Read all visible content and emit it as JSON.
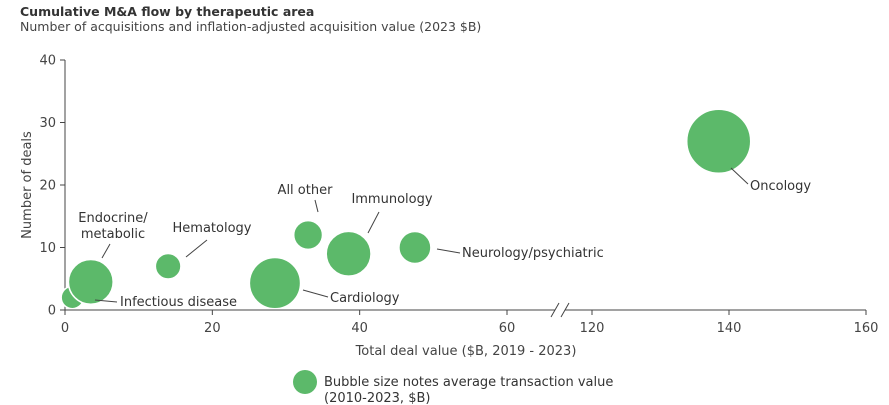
{
  "chart_data": {
    "type": "bubble",
    "title": "Cumulative M&A flow by therapeutic area",
    "subtitle": "Number of acquisitions and inflation-adjusted acquisition value (2023 $B)",
    "xlabel": "Total deal value ($B, 2019 - 2023)",
    "ylabel": "Number of deals",
    "x_axis": {
      "broken": true,
      "segments": [
        {
          "range": [
            0,
            70
          ],
          "ticks": [
            0,
            20,
            40,
            60
          ]
        },
        {
          "range": [
            110,
            160
          ],
          "ticks": [
            120,
            140,
            160
          ]
        }
      ]
    },
    "ylim": [
      0,
      40
    ],
    "yticks": [
      0,
      10,
      20,
      30,
      40
    ],
    "grid": false,
    "bubble_color": "#5cb96a",
    "legend": {
      "placement": "bottom-center",
      "text_line1": "Bubble size notes average transaction value",
      "text_line2": "(2010-2023, $B)"
    },
    "points": [
      {
        "label": "Infectious disease",
        "x": 1,
        "y": 2,
        "size": 3.5
      },
      {
        "label": "Endocrine/ metabolic",
        "label_lines": [
          "Endocrine/",
          "metabolic"
        ],
        "x": 3.5,
        "y": 4.5,
        "size": 7
      },
      {
        "label": "Hematology",
        "x": 14,
        "y": 7,
        "size": 4
      },
      {
        "label": "Cardiology",
        "x": 28.5,
        "y": 4.3,
        "size": 8
      },
      {
        "label": "All other",
        "x": 33,
        "y": 12,
        "size": 4.5
      },
      {
        "label": "Immunology",
        "x": 38.5,
        "y": 9,
        "size": 7
      },
      {
        "label": "Neurology/psychiatric",
        "x": 47.5,
        "y": 10,
        "size": 5
      },
      {
        "label": "Oncology",
        "x": 138.5,
        "y": 27,
        "size": 10
      }
    ]
  }
}
